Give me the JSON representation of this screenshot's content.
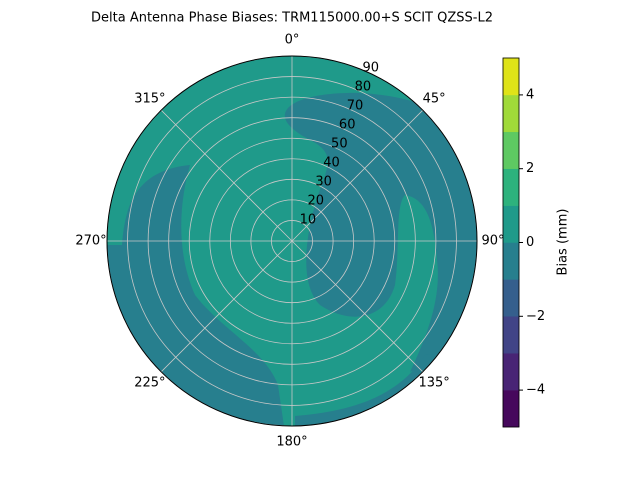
{
  "chart_data": {
    "type": "polar-contour",
    "title": "Delta Antenna Phase Biases: TRM115000.00+S  SCIT QZSS-L2",
    "rlim": [
      0,
      90
    ],
    "rticks": [
      10,
      20,
      30,
      40,
      50,
      60,
      70,
      80,
      90
    ],
    "thetaticks": [
      {
        "value": 0,
        "label": "0°"
      },
      {
        "value": 45,
        "label": "45°"
      },
      {
        "value": 90,
        "label": "90°"
      },
      {
        "value": 135,
        "label": "135°"
      },
      {
        "value": 180,
        "label": "180°"
      },
      {
        "value": 225,
        "label": "225°"
      },
      {
        "value": 270,
        "label": "270°"
      },
      {
        "value": 315,
        "label": "315°"
      }
    ],
    "grid": true,
    "levels": [
      -5,
      -4,
      -3,
      -2,
      -1,
      0,
      1,
      2,
      3,
      4,
      5
    ],
    "colors": [
      "#46085c",
      "#482475",
      "#414487",
      "#355f8d",
      "#277f8e",
      "#1f9a8a",
      "#2db27d",
      "#5ec962",
      "#a0da39",
      "#dfe318"
    ],
    "clim": [
      -5,
      5
    ],
    "cticks": [
      {
        "value": -4,
        "label": "−4"
      },
      {
        "value": -2,
        "label": "−2"
      },
      0,
      2,
      4
    ],
    "colorbar_label": "Bias (mm)"
  }
}
